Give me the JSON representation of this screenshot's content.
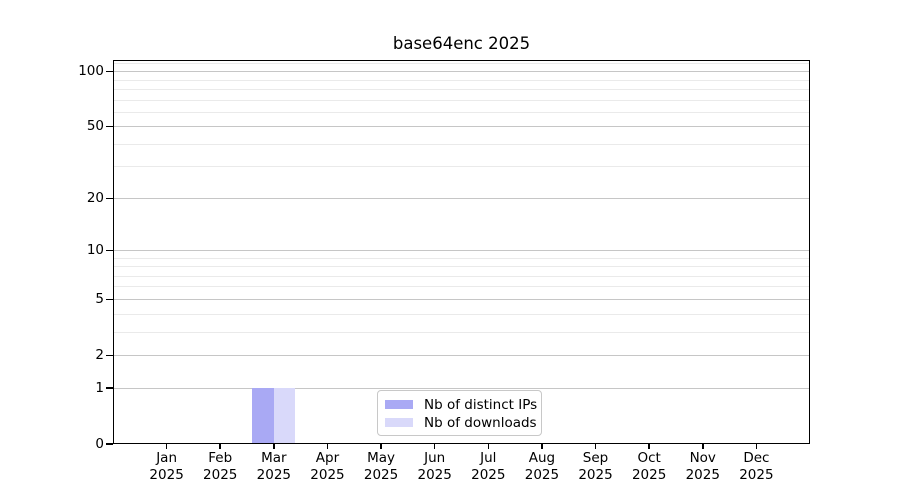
{
  "chart_data": {
    "type": "bar",
    "title": "base64enc 2025",
    "categories": [
      "Jan",
      "Feb",
      "Mar",
      "Apr",
      "May",
      "Jun",
      "Jul",
      "Aug",
      "Sep",
      "Oct",
      "Nov",
      "Dec"
    ],
    "x_year_label": "2025",
    "series": [
      {
        "name": "Nb of distinct IPs",
        "color": "#a9a9f4",
        "values": [
          0,
          0,
          1,
          0,
          0,
          0,
          0,
          0,
          0,
          0,
          0,
          0
        ]
      },
      {
        "name": "Nb of downloads",
        "color": "#d9d9fa",
        "values": [
          0,
          0,
          1,
          0,
          0,
          0,
          0,
          0,
          0,
          0,
          0,
          0
        ]
      }
    ],
    "y_scale": "log1p",
    "ylim": [
      0,
      115.6
    ],
    "y_major_ticks": [
      0,
      1,
      2,
      5,
      10,
      20,
      50,
      100
    ],
    "y_minor_gridlines": [
      3,
      4,
      6,
      7,
      8,
      9,
      30,
      40,
      60,
      70,
      80,
      90,
      110
    ],
    "grid": "horizontal",
    "legend_position": "inside-bottom-center"
  },
  "colors": {
    "major_gridline": "#c6c6c6",
    "minor_gridline": "#eaeaea",
    "axis": "#000000",
    "background": "#ffffff"
  }
}
